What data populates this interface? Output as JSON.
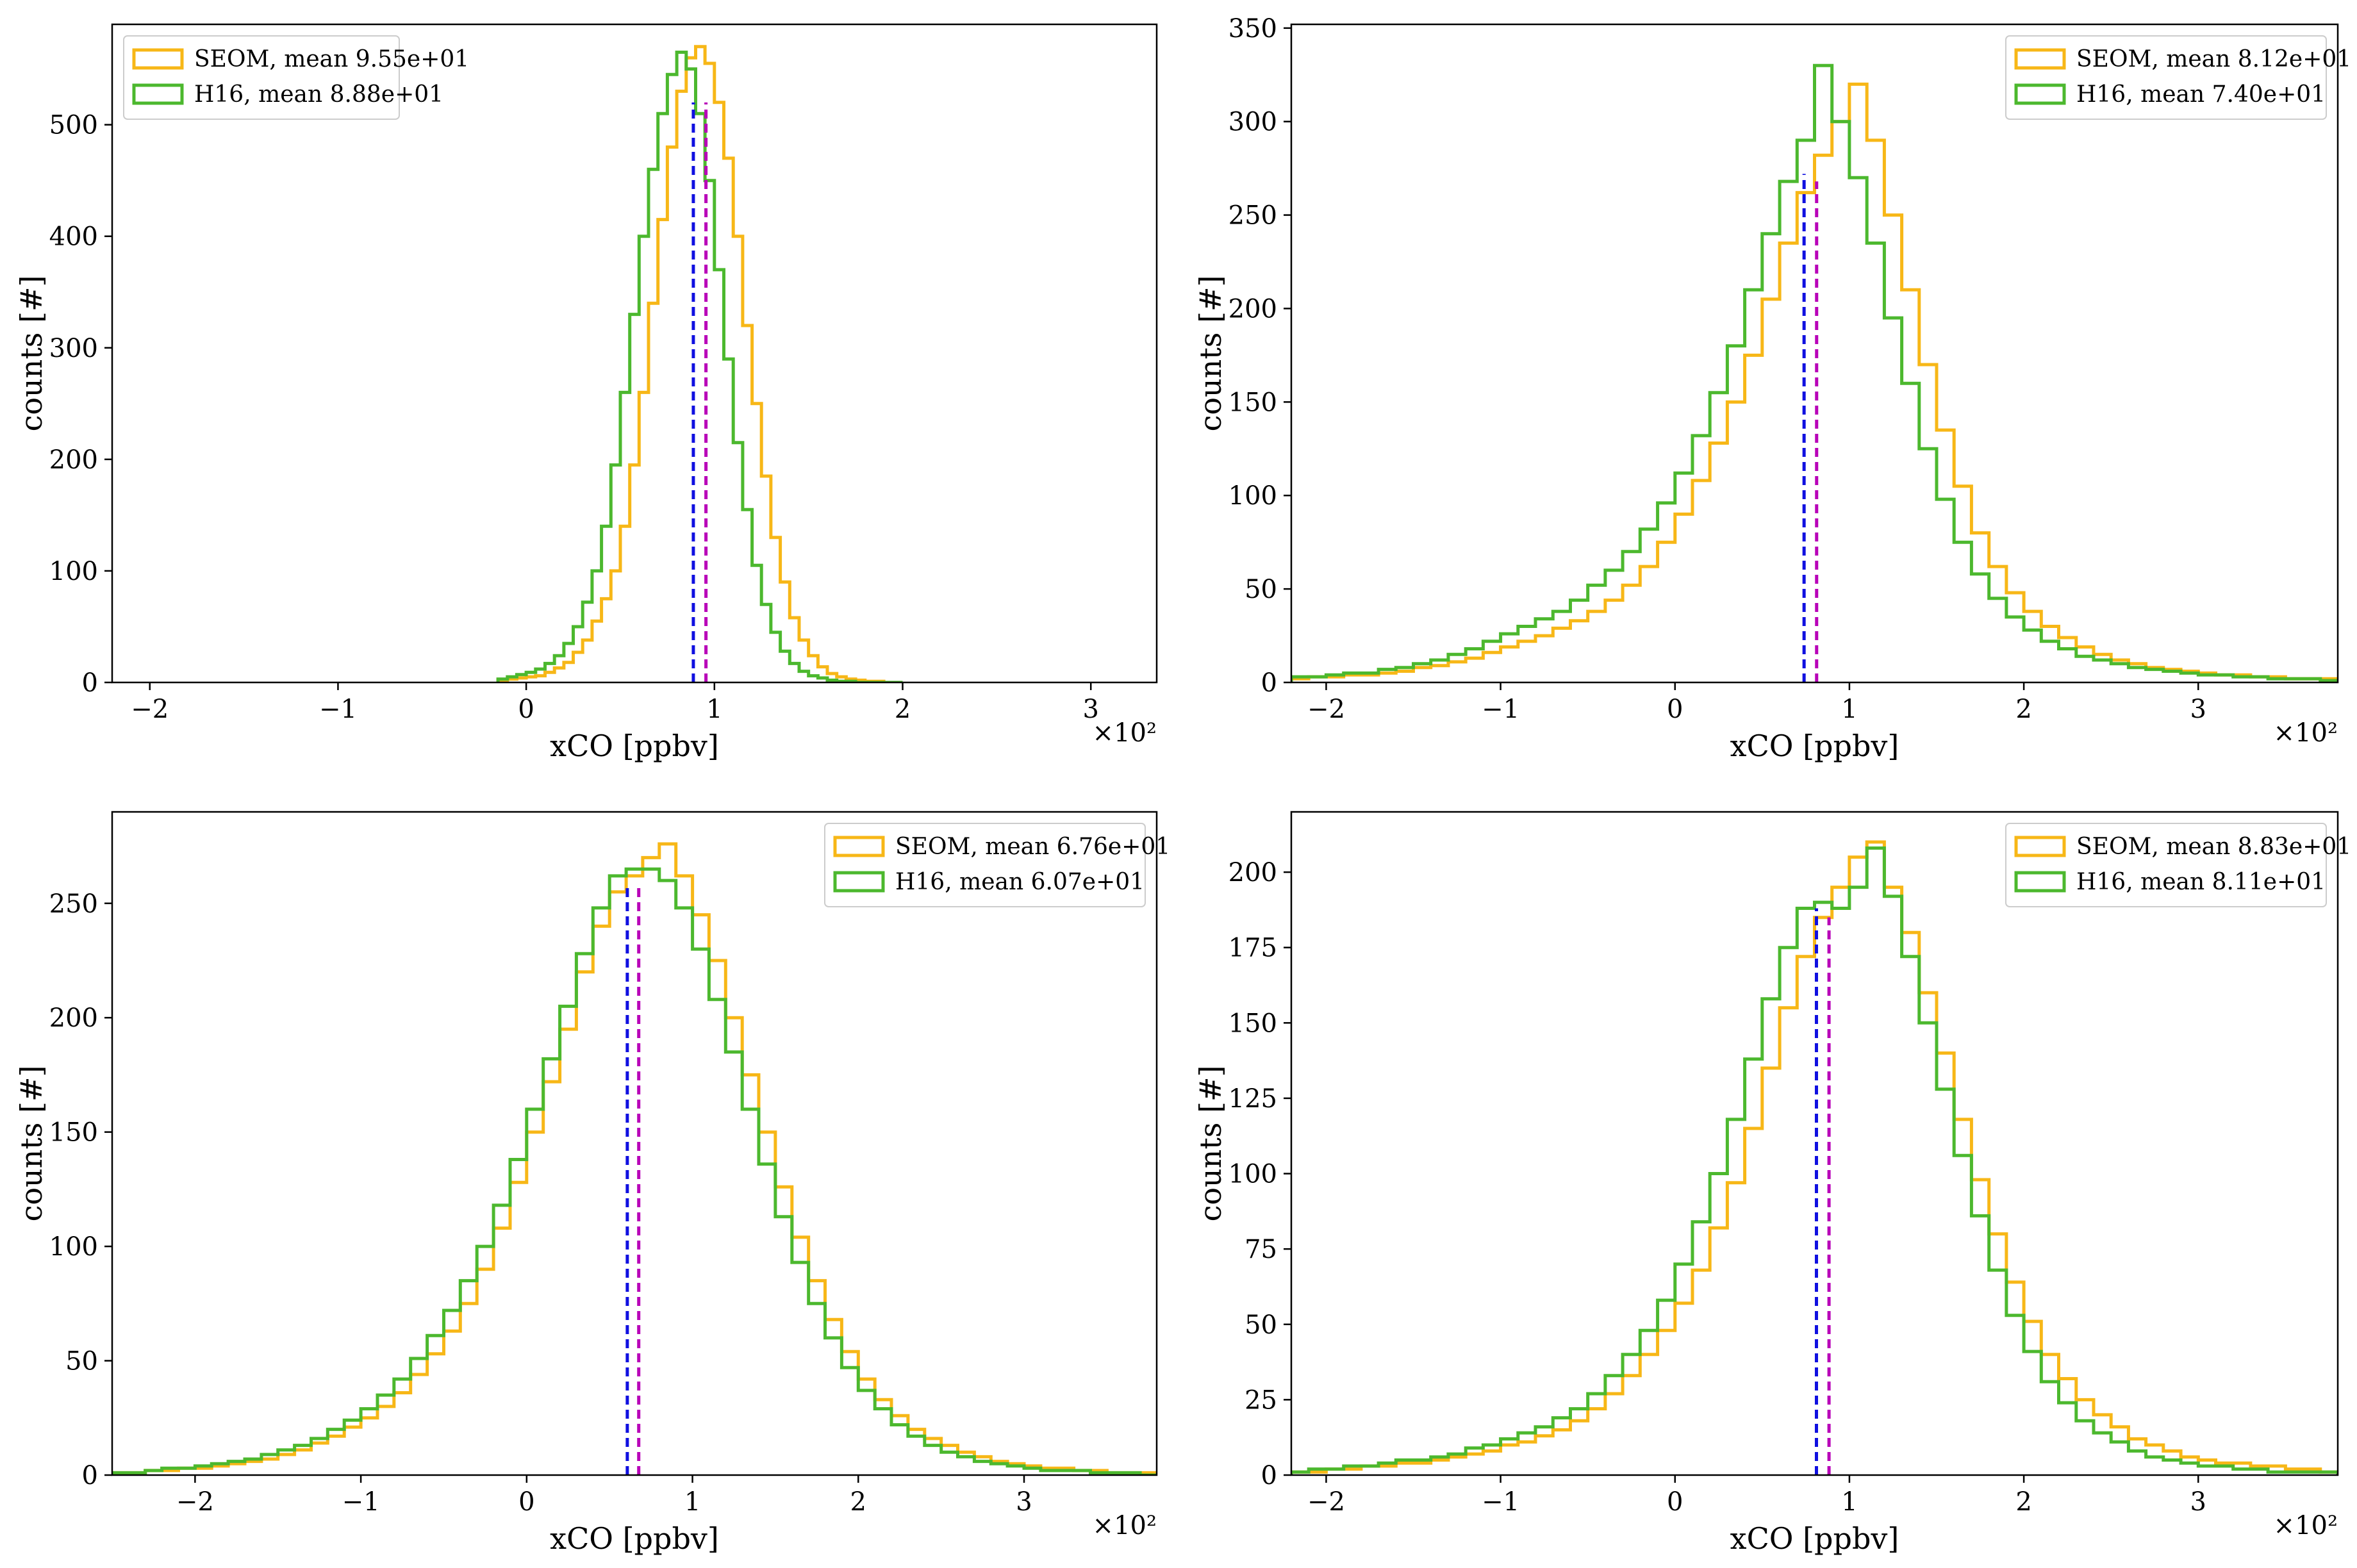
{
  "colors": {
    "seom": "#f7b717",
    "h16": "#4cb82e",
    "mean_seom": "#b800b8",
    "mean_h16": "#1010e0",
    "axis": "#000000"
  },
  "chart_data": [
    {
      "type": "histogram",
      "xlabel": "xCO [ppbv]",
      "ylabel": "counts [#]",
      "offset_label": "×10²",
      "xlim": [
        -2.2,
        3.35
      ],
      "ylim": [
        0,
        590
      ],
      "xticks": [
        -2,
        -1,
        0,
        1,
        2,
        3
      ],
      "xtick_labels": [
        "−2",
        "−1",
        "0",
        "1",
        "2",
        "3"
      ],
      "yticks": [
        0,
        100,
        200,
        300,
        400,
        500
      ],
      "ytick_labels": [
        "0",
        "100",
        "200",
        "300",
        "400",
        "500"
      ],
      "legend_position": "top-left",
      "bin_width": 0.05,
      "series": [
        {
          "name": "SEOM",
          "label": "SEOM, mean 9.55e+01",
          "mean": 0.955,
          "mean_height": 520,
          "x": [
            -0.15,
            -0.1,
            -0.05,
            0.0,
            0.05,
            0.1,
            0.15,
            0.2,
            0.25,
            0.3,
            0.35,
            0.4,
            0.45,
            0.5,
            0.55,
            0.6,
            0.65,
            0.7,
            0.75,
            0.8,
            0.85,
            0.9,
            0.95,
            1.0,
            1.05,
            1.1,
            1.15,
            1.2,
            1.25,
            1.3,
            1.35,
            1.4,
            1.45,
            1.5,
            1.55,
            1.6,
            1.65,
            1.7,
            1.75,
            1.8,
            1.85,
            1.9,
            1.95
          ],
          "values": [
            2,
            3,
            4,
            5,
            6,
            9,
            13,
            18,
            27,
            38,
            55,
            75,
            100,
            140,
            195,
            260,
            340,
            415,
            480,
            530,
            560,
            570,
            555,
            520,
            470,
            400,
            320,
            250,
            185,
            130,
            90,
            58,
            38,
            24,
            14,
            8,
            5,
            3,
            2,
            1,
            1,
            0,
            0
          ]
        },
        {
          "name": "H16",
          "label": "H16, mean 8.88e+01",
          "mean": 0.888,
          "mean_height": 520,
          "x": [
            -0.15,
            -0.1,
            -0.05,
            0.0,
            0.05,
            0.1,
            0.15,
            0.2,
            0.25,
            0.3,
            0.35,
            0.4,
            0.45,
            0.5,
            0.55,
            0.6,
            0.65,
            0.7,
            0.75,
            0.8,
            0.85,
            0.9,
            0.95,
            1.0,
            1.05,
            1.1,
            1.15,
            1.2,
            1.25,
            1.3,
            1.35,
            1.4,
            1.45,
            1.5,
            1.55,
            1.6,
            1.65,
            1.7,
            1.75,
            1.8,
            1.85,
            1.9,
            1.95
          ],
          "values": [
            3,
            5,
            7,
            9,
            12,
            17,
            24,
            35,
            50,
            72,
            100,
            140,
            195,
            260,
            330,
            400,
            460,
            510,
            545,
            565,
            550,
            510,
            450,
            370,
            290,
            215,
            155,
            105,
            70,
            45,
            28,
            17,
            10,
            6,
            4,
            2,
            1,
            1,
            0,
            0,
            0,
            0,
            0
          ]
        }
      ]
    },
    {
      "type": "histogram",
      "xlabel": "xCO [ppbv]",
      "ylabel": "counts [#]",
      "offset_label": "×10²",
      "xlim": [
        -2.2,
        3.8
      ],
      "ylim": [
        0,
        352
      ],
      "xticks": [
        -2,
        -1,
        0,
        1,
        2,
        3
      ],
      "xtick_labels": [
        "−2",
        "−1",
        "0",
        "1",
        "2",
        "3"
      ],
      "yticks": [
        0,
        50,
        100,
        150,
        200,
        250,
        300,
        350
      ],
      "ytick_labels": [
        "0",
        "50",
        "100",
        "150",
        "200",
        "250",
        "300",
        "350"
      ],
      "legend_position": "top-right",
      "bin_width": 0.1,
      "series": [
        {
          "name": "SEOM",
          "label": "SEOM, mean 8.12e+01",
          "mean": 0.812,
          "mean_height": 268,
          "x": [
            -2.2,
            -2.1,
            -2.0,
            -1.9,
            -1.8,
            -1.7,
            -1.6,
            -1.5,
            -1.4,
            -1.3,
            -1.2,
            -1.1,
            -1.0,
            -0.9,
            -0.8,
            -0.7,
            -0.6,
            -0.5,
            -0.4,
            -0.3,
            -0.2,
            -0.1,
            0.0,
            0.1,
            0.2,
            0.3,
            0.4,
            0.5,
            0.6,
            0.7,
            0.8,
            0.9,
            1.0,
            1.1,
            1.2,
            1.3,
            1.4,
            1.5,
            1.6,
            1.7,
            1.8,
            1.9,
            2.0,
            2.1,
            2.2,
            2.3,
            2.4,
            2.5,
            2.6,
            2.7,
            2.8,
            2.9,
            3.0,
            3.1,
            3.2,
            3.3,
            3.4,
            3.5,
            3.6,
            3.7
          ],
          "values": [
            2,
            3,
            3,
            4,
            4,
            5,
            6,
            8,
            9,
            11,
            13,
            16,
            19,
            22,
            25,
            29,
            33,
            38,
            44,
            52,
            62,
            75,
            90,
            108,
            128,
            150,
            175,
            205,
            235,
            262,
            282,
            300,
            320,
            290,
            250,
            210,
            170,
            135,
            105,
            80,
            62,
            48,
            38,
            30,
            24,
            19,
            15,
            12,
            10,
            8,
            7,
            6,
            5,
            4,
            4,
            3,
            3,
            2,
            2,
            2
          ]
        },
        {
          "name": "H16",
          "label": "H16, mean 7.40e+01",
          "mean": 0.74,
          "mean_height": 272,
          "x": [
            -2.2,
            -2.1,
            -2.0,
            -1.9,
            -1.8,
            -1.7,
            -1.6,
            -1.5,
            -1.4,
            -1.3,
            -1.2,
            -1.1,
            -1.0,
            -0.9,
            -0.8,
            -0.7,
            -0.6,
            -0.5,
            -0.4,
            -0.3,
            -0.2,
            -0.1,
            0.0,
            0.1,
            0.2,
            0.3,
            0.4,
            0.5,
            0.6,
            0.7,
            0.8,
            0.9,
            1.0,
            1.1,
            1.2,
            1.3,
            1.4,
            1.5,
            1.6,
            1.7,
            1.8,
            1.9,
            2.0,
            2.1,
            2.2,
            2.3,
            2.4,
            2.5,
            2.6,
            2.7,
            2.8,
            2.9,
            3.0,
            3.1,
            3.2,
            3.3,
            3.4,
            3.5,
            3.6,
            3.7
          ],
          "values": [
            3,
            3,
            4,
            5,
            5,
            7,
            8,
            10,
            12,
            15,
            18,
            22,
            26,
            30,
            34,
            38,
            44,
            52,
            60,
            70,
            82,
            96,
            112,
            132,
            155,
            180,
            210,
            240,
            268,
            290,
            330,
            300,
            270,
            235,
            195,
            160,
            125,
            98,
            75,
            58,
            45,
            35,
            28,
            22,
            18,
            14,
            12,
            10,
            8,
            7,
            6,
            5,
            4,
            4,
            3,
            3,
            2,
            2,
            2,
            1
          ]
        }
      ]
    },
    {
      "type": "histogram",
      "xlabel": "xCO [ppbv]",
      "ylabel": "counts [#]",
      "offset_label": "×10²",
      "xlim": [
        -2.5,
        3.8
      ],
      "ylim": [
        0,
        290
      ],
      "xticks": [
        -2,
        -1,
        0,
        1,
        2,
        3
      ],
      "xtick_labels": [
        "−2",
        "−1",
        "0",
        "1",
        "2",
        "3"
      ],
      "yticks": [
        0,
        50,
        100,
        150,
        200,
        250
      ],
      "ytick_labels": [
        "0",
        "50",
        "100",
        "150",
        "200",
        "250"
      ],
      "legend_position": "top-right",
      "bin_width": 0.1,
      "series": [
        {
          "name": "SEOM",
          "label": "SEOM, mean 6.76e+01",
          "mean": 0.676,
          "mean_height": 258,
          "x": [
            -2.5,
            -2.4,
            -2.3,
            -2.2,
            -2.1,
            -2.0,
            -1.9,
            -1.8,
            -1.7,
            -1.6,
            -1.5,
            -1.4,
            -1.3,
            -1.2,
            -1.1,
            -1.0,
            -0.9,
            -0.8,
            -0.7,
            -0.6,
            -0.5,
            -0.4,
            -0.3,
            -0.2,
            -0.1,
            0.0,
            0.1,
            0.2,
            0.3,
            0.4,
            0.5,
            0.6,
            0.7,
            0.8,
            0.9,
            1.0,
            1.1,
            1.2,
            1.3,
            1.4,
            1.5,
            1.6,
            1.7,
            1.8,
            1.9,
            2.0,
            2.1,
            2.2,
            2.3,
            2.4,
            2.5,
            2.6,
            2.7,
            2.8,
            2.9,
            3.0,
            3.1,
            3.2,
            3.3,
            3.4,
            3.5,
            3.6,
            3.7
          ],
          "values": [
            1,
            1,
            2,
            2,
            3,
            3,
            4,
            5,
            6,
            7,
            9,
            11,
            14,
            17,
            21,
            25,
            30,
            36,
            44,
            53,
            63,
            75,
            90,
            108,
            128,
            150,
            172,
            195,
            220,
            240,
            255,
            262,
            270,
            276,
            262,
            245,
            225,
            200,
            175,
            150,
            126,
            104,
            85,
            68,
            54,
            42,
            33,
            26,
            20,
            16,
            13,
            10,
            8,
            6,
            5,
            4,
            3,
            3,
            2,
            2,
            1,
            1,
            1
          ]
        },
        {
          "name": "H16",
          "label": "H16, mean 6.07e+01",
          "mean": 0.607,
          "mean_height": 258,
          "x": [
            -2.5,
            -2.4,
            -2.3,
            -2.2,
            -2.1,
            -2.0,
            -1.9,
            -1.8,
            -1.7,
            -1.6,
            -1.5,
            -1.4,
            -1.3,
            -1.2,
            -1.1,
            -1.0,
            -0.9,
            -0.8,
            -0.7,
            -0.6,
            -0.5,
            -0.4,
            -0.3,
            -0.2,
            -0.1,
            0.0,
            0.1,
            0.2,
            0.3,
            0.4,
            0.5,
            0.6,
            0.7,
            0.8,
            0.9,
            1.0,
            1.1,
            1.2,
            1.3,
            1.4,
            1.5,
            1.6,
            1.7,
            1.8,
            1.9,
            2.0,
            2.1,
            2.2,
            2.3,
            2.4,
            2.5,
            2.6,
            2.7,
            2.8,
            2.9,
            3.0,
            3.1,
            3.2,
            3.3,
            3.4,
            3.5,
            3.6,
            3.7
          ],
          "values": [
            1,
            1,
            2,
            3,
            3,
            4,
            5,
            6,
            7,
            9,
            11,
            13,
            16,
            20,
            24,
            29,
            35,
            42,
            51,
            61,
            72,
            85,
            100,
            118,
            138,
            160,
            182,
            205,
            228,
            248,
            262,
            265,
            265,
            260,
            248,
            230,
            208,
            185,
            160,
            136,
            113,
            93,
            75,
            60,
            47,
            37,
            29,
            22,
            17,
            13,
            10,
            8,
            6,
            5,
            4,
            3,
            2,
            2,
            2,
            1,
            1,
            1,
            0
          ]
        }
      ]
    },
    {
      "type": "histogram",
      "xlabel": "xCO [ppbv]",
      "ylabel": "counts [#]",
      "offset_label": "×10²",
      "xlim": [
        -2.2,
        3.8
      ],
      "ylim": [
        0,
        220
      ],
      "xticks": [
        -2,
        -1,
        0,
        1,
        2,
        3
      ],
      "xtick_labels": [
        "−2",
        "−1",
        "0",
        "1",
        "2",
        "3"
      ],
      "yticks": [
        0,
        25,
        50,
        75,
        100,
        125,
        150,
        175,
        200
      ],
      "ytick_labels": [
        "0",
        "25",
        "50",
        "75",
        "100",
        "125",
        "150",
        "175",
        "200"
      ],
      "legend_position": "top-right",
      "bin_width": 0.1,
      "series": [
        {
          "name": "SEOM",
          "label": "SEOM, mean 8.83e+01",
          "mean": 0.883,
          "mean_height": 185,
          "x": [
            -2.2,
            -2.1,
            -2.0,
            -1.9,
            -1.8,
            -1.7,
            -1.6,
            -1.5,
            -1.4,
            -1.3,
            -1.2,
            -1.1,
            -1.0,
            -0.9,
            -0.8,
            -0.7,
            -0.6,
            -0.5,
            -0.4,
            -0.3,
            -0.2,
            -0.1,
            0.0,
            0.1,
            0.2,
            0.3,
            0.4,
            0.5,
            0.6,
            0.7,
            0.8,
            0.9,
            1.0,
            1.1,
            1.2,
            1.3,
            1.4,
            1.5,
            1.6,
            1.7,
            1.8,
            1.9,
            2.0,
            2.1,
            2.2,
            2.3,
            2.4,
            2.5,
            2.6,
            2.7,
            2.8,
            2.9,
            3.0,
            3.1,
            3.2,
            3.3,
            3.4,
            3.5,
            3.6,
            3.7
          ],
          "values": [
            1,
            1,
            2,
            2,
            3,
            3,
            4,
            4,
            5,
            6,
            7,
            8,
            10,
            11,
            13,
            15,
            18,
            22,
            27,
            33,
            40,
            48,
            57,
            68,
            82,
            97,
            115,
            135,
            155,
            172,
            185,
            195,
            205,
            210,
            195,
            180,
            160,
            140,
            118,
            98,
            80,
            64,
            51,
            40,
            32,
            25,
            20,
            16,
            12,
            10,
            8,
            6,
            5,
            4,
            4,
            3,
            3,
            2,
            2,
            1
          ]
        },
        {
          "name": "H16",
          "label": "H16, mean 8.11e+01",
          "mean": 0.811,
          "mean_height": 188,
          "x": [
            -2.2,
            -2.1,
            -2.0,
            -1.9,
            -1.8,
            -1.7,
            -1.6,
            -1.5,
            -1.4,
            -1.3,
            -1.2,
            -1.1,
            -1.0,
            -0.9,
            -0.8,
            -0.7,
            -0.6,
            -0.5,
            -0.4,
            -0.3,
            -0.2,
            -0.1,
            0.0,
            0.1,
            0.2,
            0.3,
            0.4,
            0.5,
            0.6,
            0.7,
            0.8,
            0.9,
            1.0,
            1.1,
            1.2,
            1.3,
            1.4,
            1.5,
            1.6,
            1.7,
            1.8,
            1.9,
            2.0,
            2.1,
            2.2,
            2.3,
            2.4,
            2.5,
            2.6,
            2.7,
            2.8,
            2.9,
            3.0,
            3.1,
            3.2,
            3.3,
            3.4,
            3.5,
            3.6,
            3.7
          ],
          "values": [
            1,
            2,
            2,
            3,
            3,
            4,
            5,
            5,
            6,
            7,
            9,
            10,
            12,
            14,
            16,
            19,
            22,
            27,
            33,
            40,
            48,
            58,
            70,
            84,
            100,
            118,
            138,
            158,
            175,
            188,
            190,
            188,
            195,
            208,
            192,
            172,
            150,
            128,
            106,
            86,
            68,
            53,
            41,
            31,
            24,
            18,
            14,
            11,
            8,
            6,
            5,
            4,
            3,
            3,
            2,
            2,
            1,
            1,
            1,
            1
          ]
        }
      ]
    }
  ]
}
